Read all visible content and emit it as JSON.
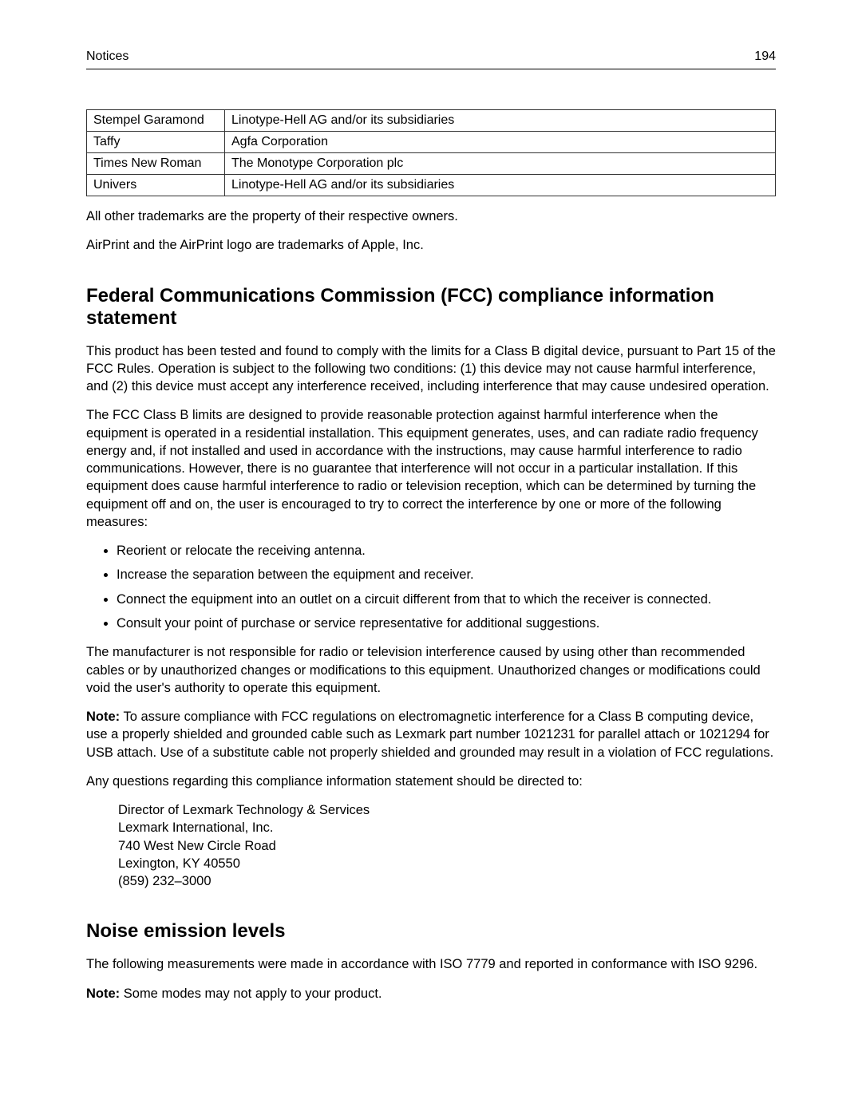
{
  "header": {
    "section": "Notices",
    "page_number": "194"
  },
  "font_table": {
    "rows": [
      [
        "Stempel Garamond",
        "Linotype-Hell AG and/or its subsidiaries"
      ],
      [
        "Taffy",
        "Agfa Corporation"
      ],
      [
        "Times New Roman",
        "The Monotype Corporation plc"
      ],
      [
        "Univers",
        "Linotype-Hell AG and/or its subsidiaries"
      ]
    ]
  },
  "para_after_table_1": "All other trademarks are the property of their respective owners.",
  "para_after_table_2": "AirPrint and the AirPrint logo are trademarks of Apple, Inc.",
  "fcc": {
    "heading": "Federal Communications Commission (FCC) compliance information statement",
    "p1": "This product has been tested and found to comply with the limits for a Class B digital device, pursuant to Part 15 of the FCC Rules. Operation is subject to the following two conditions: (1) this device may not cause harmful interference, and (2) this device must accept any interference received, including interference that may cause undesired operation.",
    "p2": "The FCC Class B limits are designed to provide reasonable protection against harmful interference when the equipment is operated in a residential installation. This equipment generates, uses, and can radiate radio frequency energy and, if not installed and used in accordance with the instructions, may cause harmful interference to radio communications. However, there is no guarantee that interference will not occur in a particular installation. If this equipment does cause harmful interference to radio or television reception, which can be determined by turning the equipment off and on, the user is encouraged to try to correct the interference by one or more of the following measures:",
    "bullets": [
      "Reorient or relocate the receiving antenna.",
      "Increase the separation between the equipment and receiver.",
      "Connect the equipment into an outlet on a circuit different from that to which the receiver is connected.",
      "Consult your point of purchase or service representative for additional suggestions."
    ],
    "p3": "The manufacturer is not responsible for radio or television interference caused by using other than recommended cables or by unauthorized changes or modifications to this equipment. Unauthorized changes or modifications could void the user's authority to operate this equipment.",
    "note_label": "Note:",
    "note_body": " To assure compliance with FCC regulations on electromagnetic interference for a Class B computing device, use a properly shielded and grounded cable such as Lexmark part number 1021231 for parallel attach or 1021294 for USB attach. Use of a substitute cable not properly shielded and grounded may result in a violation of FCC regulations.",
    "p4": "Any questions regarding this compliance information statement should be directed to:",
    "address": [
      "Director of Lexmark Technology & Services",
      "Lexmark International, Inc.",
      "740 West New Circle Road",
      "Lexington, KY 40550",
      "(859) 232–3000"
    ]
  },
  "noise": {
    "heading": "Noise emission levels",
    "p1": "The following measurements were made in accordance with ISO 7779 and reported in conformance with ISO 9296.",
    "note_label": "Note:",
    "note_body": " Some modes may not apply to your product."
  }
}
